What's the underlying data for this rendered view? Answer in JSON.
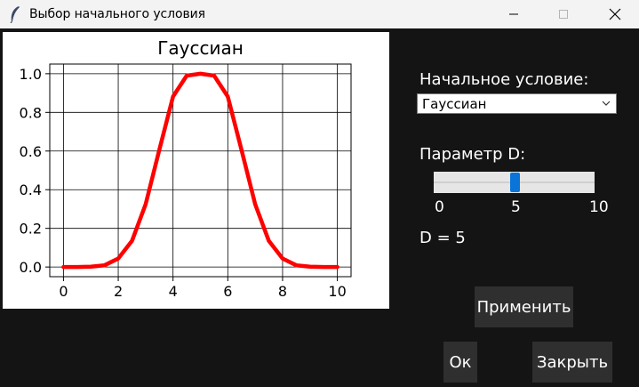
{
  "window": {
    "title": "Выбор начального условия"
  },
  "chart_data": {
    "type": "line",
    "title": "Гауссиан",
    "xlabel": "",
    "ylabel": "",
    "xlim": [
      -0.5,
      10.5
    ],
    "ylim": [
      -0.05,
      1.05
    ],
    "xticks": [
      "0",
      "2",
      "4",
      "6",
      "8",
      "10"
    ],
    "yticks": [
      "0.0",
      "0.2",
      "0.4",
      "0.6",
      "0.8",
      "1.0"
    ],
    "grid": true,
    "series": [
      {
        "color": "#ff0000",
        "x": [
          0,
          0.5,
          1,
          1.5,
          2,
          2.5,
          3,
          3.5,
          4,
          4.5,
          5,
          5.5,
          6,
          6.5,
          7,
          7.5,
          8,
          8.5,
          9,
          9.5,
          10
        ],
        "y": [
          0.0,
          0.0,
          0.002,
          0.009,
          0.044,
          0.135,
          0.325,
          0.607,
          0.882,
          0.99,
          1.0,
          0.99,
          0.882,
          0.607,
          0.325,
          0.135,
          0.044,
          0.009,
          0.002,
          0.0,
          0.0
        ]
      }
    ]
  },
  "controls": {
    "initial_condition_label": "Начальное условие:",
    "initial_condition_value": "Гауссиан",
    "param_label": "Параметр D:",
    "slider": {
      "min": 0,
      "max": 10,
      "value": 5,
      "tick_min": "0",
      "tick_mid": "5",
      "tick_max": "10"
    },
    "d_readout": "D = 5"
  },
  "buttons": {
    "apply": "Применить",
    "ok": "Ок",
    "close": "Закрыть"
  },
  "colors": {
    "background": "#141414",
    "accent": "#0a74d8",
    "curve": "#ff0000"
  }
}
